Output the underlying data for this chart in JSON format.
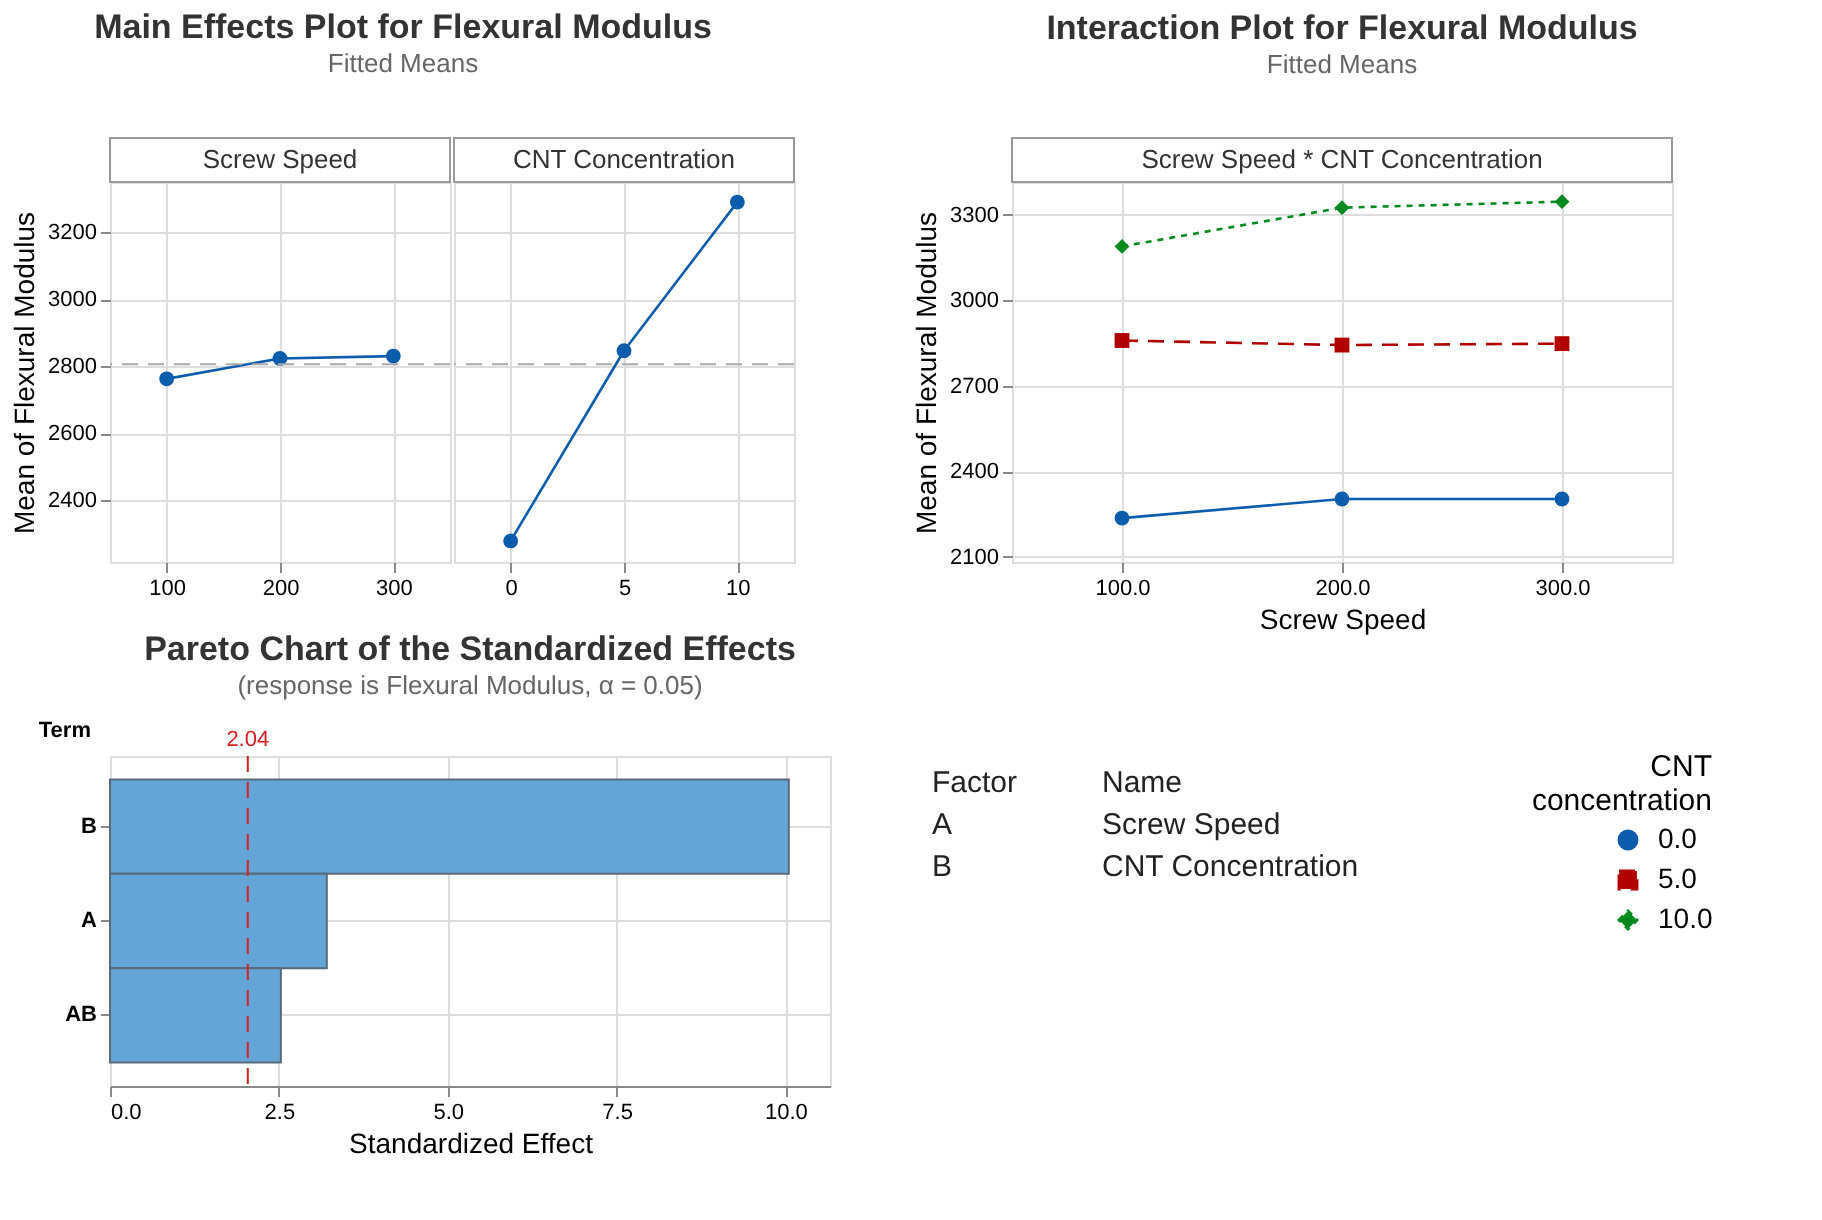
{
  "chart_data": [
    {
      "type": "line",
      "title": "Main Effects Plot for Flexural Modulus",
      "subtitle": "Fitted Means",
      "ylabel": "Mean of Flexural Modulus",
      "annotations": [
        "Screw Speed"
      ],
      "x": [
        100,
        200,
        300
      ],
      "xlim": [
        50,
        350
      ],
      "xticks": [
        100,
        200,
        300
      ],
      "ylim": [
        2215,
        3350
      ],
      "yticks": [
        2400,
        2600,
        2800,
        3000,
        3200
      ],
      "grid": true,
      "marker": "circle",
      "series": [
        {
          "color": "#0b5cad",
          "values": [
            2762,
            2823,
            2830
          ]
        }
      ],
      "ref_lines": [
        {
          "axis": "y",
          "value": 2806,
          "color": "#aaaaaa",
          "line_style": "dashed"
        }
      ]
    },
    {
      "type": "line",
      "annotations": [
        "CNT Concentration"
      ],
      "x": [
        0,
        5,
        10
      ],
      "xlim": [
        -2.5,
        12.5
      ],
      "xticks": [
        0,
        5,
        10
      ],
      "ylim": [
        2215,
        3350
      ],
      "yticks": [
        2400,
        2600,
        2800,
        3000,
        3200
      ],
      "tick_labels": "x",
      "grid": true,
      "marker": "circle",
      "series": [
        {
          "color": "#0b5cad",
          "values": [
            2278,
            2846,
            3290
          ]
        }
      ],
      "ref_lines": [
        {
          "axis": "y",
          "value": 2806,
          "color": "#aaaaaa",
          "line_style": "dashed"
        }
      ]
    },
    {
      "type": "line",
      "title": "Interaction Plot for Flexural Modulus",
      "subtitle": "Fitted Means",
      "xlabel": "Screw Speed",
      "ylabel": "Mean of Flexural Modulus",
      "annotations": [
        "Screw Speed * CNT Concentration"
      ],
      "legend_title": "CNT concentration",
      "legend": "bottom right",
      "x": [
        100,
        200,
        300
      ],
      "xlim": [
        50,
        350
      ],
      "xticks": [
        {
          "value": 100,
          "label": "100.0"
        },
        {
          "value": 200,
          "label": "200.0"
        },
        {
          "value": 300,
          "label": "300.0"
        }
      ],
      "ylim": [
        2082,
        3415
      ],
      "yticks": [
        2100,
        2400,
        2700,
        3000,
        3300
      ],
      "grid": true,
      "series": [
        {
          "name": "0.0",
          "color": "#0b5cad",
          "marker": "circle",
          "line_style": "solid",
          "values": [
            2236,
            2303,
            2303
          ]
        },
        {
          "name": "5.0",
          "color": "#b00000",
          "marker": "square",
          "line_style": "dashed",
          "values": [
            2859,
            2843,
            2848
          ]
        },
        {
          "name": "10.0",
          "color": "#008a1e",
          "marker": "diamond",
          "line_style": "dotted",
          "values": [
            3189,
            3325,
            3346
          ]
        }
      ]
    },
    {
      "type": "bar",
      "orientation": "horizontal",
      "title": "Pareto Chart of the Standardized Effects",
      "subtitle": "(response is Flexural Modulus, α = 0.05)",
      "xlabel": "Standardized Effect",
      "ylabel": "Term",
      "categories": [
        "B",
        "A",
        "AB"
      ],
      "values": [
        10.05,
        3.21,
        2.53
      ],
      "color": "#64a5d8",
      "xlim": [
        0,
        10.66
      ],
      "xticks": [
        {
          "value": 0,
          "label": "0.0"
        },
        {
          "value": 2.5,
          "label": "2.5"
        },
        {
          "value": 5,
          "label": "5.0"
        },
        {
          "value": 7.5,
          "label": "7.5"
        },
        {
          "value": 10,
          "label": "10.0"
        }
      ],
      "grid": true,
      "ref_lines": [
        {
          "axis": "x",
          "value": 2.04,
          "label": "2.04",
          "color": "#d62020",
          "line_style": "dashed"
        }
      ]
    },
    {
      "type": "other",
      "annotations": [
        "Factor",
        "Name",
        "A",
        "Screw Speed",
        "B",
        "CNT Concentration"
      ]
    }
  ]
}
